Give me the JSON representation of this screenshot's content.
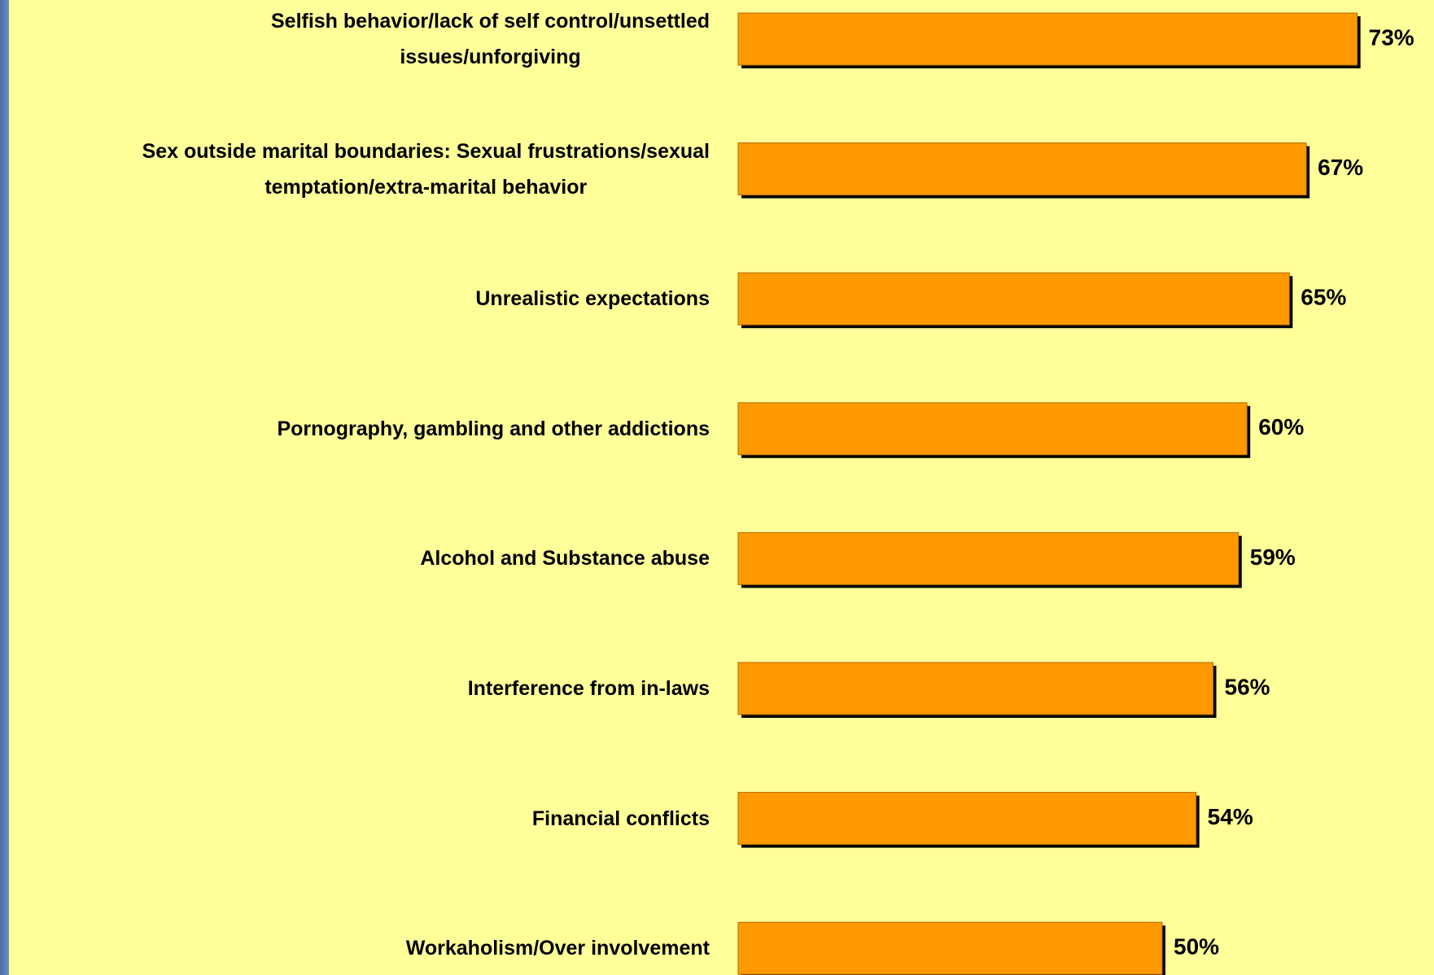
{
  "chart_data": {
    "type": "bar",
    "orientation": "horizontal",
    "color": "#ff9900",
    "categories": [
      "Selfish behavior/lack of self control/unsettled\nissues/unforgiving",
      "Sex outside marital boundaries: Sexual frustrations/sexual\ntemptation/extra-marital behavior",
      "Unrealistic expectations",
      "Pornography, gambling and other addictions",
      "Alcohol and Substance abuse",
      "Interference from in-laws",
      "Financial conflicts",
      "Workaholism/Over involvement"
    ],
    "values": [
      73,
      67,
      65,
      60,
      59,
      56,
      54,
      50
    ],
    "value_labels": [
      "73%",
      "67%",
      "65%",
      "60%",
      "59%",
      "56%",
      "54%",
      "50%"
    ]
  }
}
